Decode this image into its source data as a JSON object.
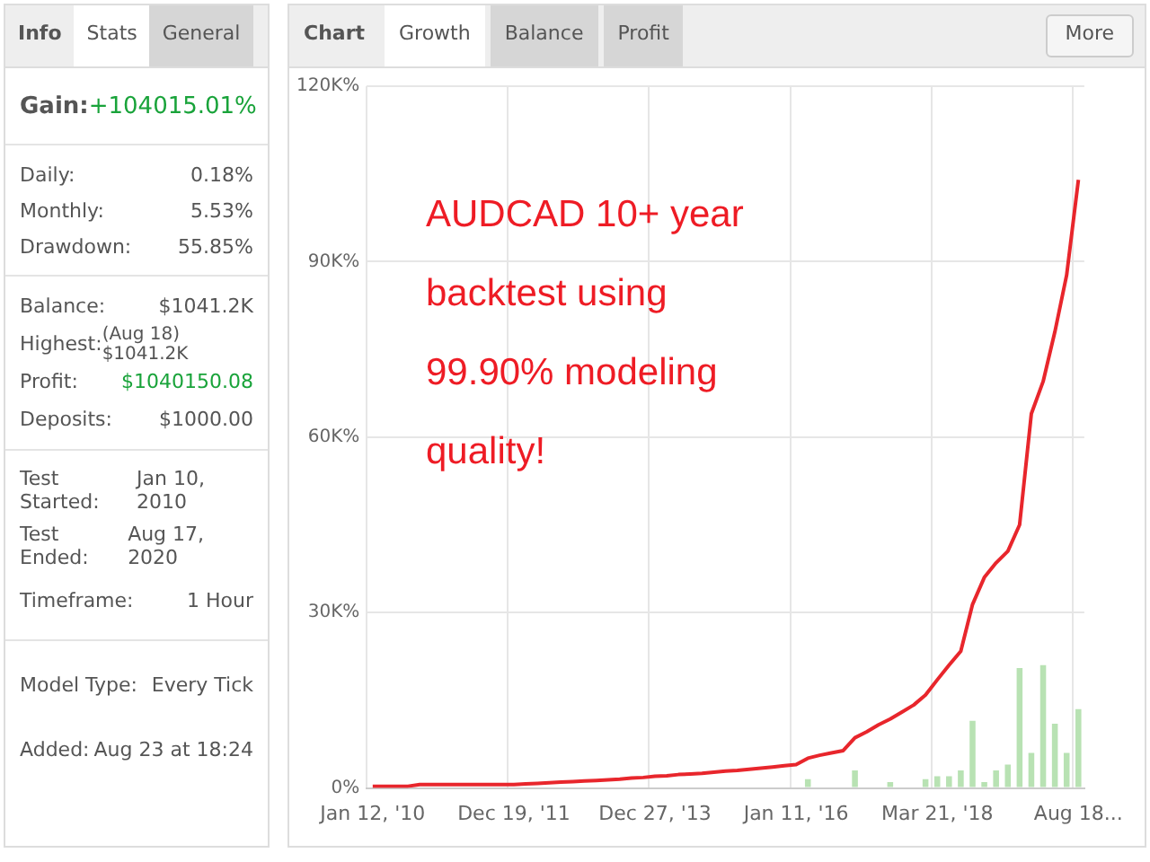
{
  "chart_data": [
    {
      "type": "other",
      "annotations": [
        "Info",
        "Stats",
        "General",
        "Gain:",
        "+104015.01%",
        "Daily:",
        "0.18%",
        "Monthly:",
        "5.53%",
        "Drawdown:",
        "55.85%",
        "Balance:",
        "$1041.2K",
        "Highest:",
        "(Aug 18) $1041.2K",
        "Profit:",
        "$1040150.08",
        "Deposits:",
        "$1000.00",
        "Test Started:",
        "Jan 10, 2010",
        "Test Ended:",
        "Aug 17, 2020",
        "Timeframe:",
        "1 Hour",
        "Model Type:",
        "Every Tick",
        "Added:",
        "Aug 23 at 18:24"
      ]
    },
    {
      "type": "line",
      "annotations": [
        "Chart",
        "Growth",
        "Balance",
        "Profit",
        "More",
        "AUDCAD 10+ year backtest using 99.90% modeling quality!"
      ],
      "categories": [
        "Jan 12, '10",
        null,
        null,
        null,
        null,
        null,
        null,
        null,
        null,
        null,
        null,
        null,
        "Dec 19, '11",
        null,
        null,
        null,
        null,
        null,
        null,
        null,
        null,
        null,
        null,
        null,
        "Dec 27, '13",
        null,
        null,
        null,
        null,
        null,
        null,
        null,
        null,
        null,
        null,
        null,
        "Jan 11, '16",
        null,
        null,
        null,
        null,
        null,
        null,
        null,
        null,
        null,
        null,
        null,
        "Mar 21, '18",
        null,
        null,
        null,
        null,
        null,
        null,
        null,
        null,
        null,
        null,
        null,
        "Aug 18..."
      ],
      "series": [
        {
          "type": "line",
          "color": "#e8262c",
          "values": [
            0.3,
            0.3,
            0.3,
            0.3,
            0.6,
            0.6,
            0.6,
            0.6,
            0.6,
            0.6,
            0.6,
            0.6,
            0.6,
            0.7,
            0.8,
            0.9,
            1.0,
            1.1,
            1.2,
            1.3,
            1.4,
            1.5,
            1.7,
            1.8,
            2.0,
            2.1,
            2.3,
            2.4,
            2.5,
            2.7,
            2.9,
            3.0,
            3.2,
            3.4,
            3.6,
            3.8,
            4.0,
            5.1,
            5.6,
            6.0,
            6.4,
            8.6,
            9.6,
            10.8,
            11.8,
            13.0,
            14.2,
            15.9,
            18.5,
            21,
            23.4,
            31.4,
            36,
            38.5,
            40.5,
            45,
            64,
            69.5,
            78,
            87.7,
            104
          ]
        },
        {
          "type": "bar",
          "color": "#b8e2b3",
          "values": [
            0,
            0,
            0,
            0,
            0,
            0,
            0,
            0,
            0,
            0,
            0,
            0,
            0,
            0,
            0,
            0,
            0,
            0,
            0,
            0,
            0,
            0,
            0,
            0,
            0,
            0,
            0,
            0,
            0,
            0,
            0,
            0,
            0,
            0,
            0,
            0,
            0,
            1.5,
            0,
            0,
            0,
            3,
            0,
            0,
            1,
            0,
            0,
            1.5,
            2,
            2,
            3,
            11.5,
            1,
            3,
            4,
            20.5,
            6,
            21,
            11,
            6,
            13.5
          ]
        }
      ],
      "ylim": [
        0,
        120
      ],
      "yticks": [
        {
          "value": 0,
          "label": "0%"
        },
        {
          "value": 30,
          "label": "30K%"
        },
        {
          "value": 60,
          "label": "60K%"
        },
        {
          "value": 90,
          "label": "90K%"
        },
        {
          "value": 120,
          "label": "120K%"
        }
      ],
      "grid": true,
      "legend": false,
      "marker": "none",
      "line_style": "solid"
    }
  ]
}
